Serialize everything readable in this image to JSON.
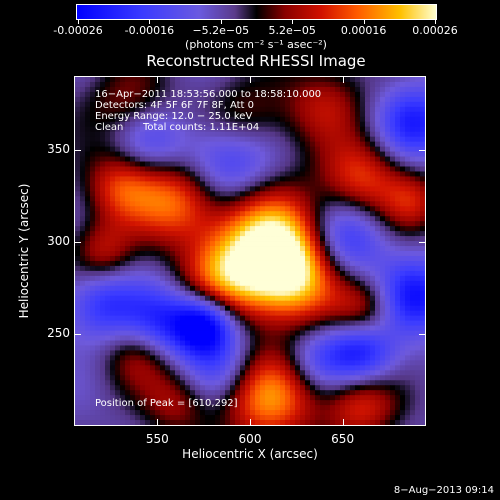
{
  "colorbar": {
    "ticks": [
      "-0.00026",
      "-0.00016",
      "−5.2e−05",
      "5.2e−05",
      "0.00016",
      "0.00026"
    ],
    "unit": "(photons cm⁻² s⁻¹ asec⁻²)"
  },
  "chart_data": {
    "type": "heatmap",
    "title": "Reconstructed RHESSI Image",
    "xlabel": "Heliocentric X (arcsec)",
    "ylabel": "Heliocentric Y (arcsec)",
    "xlim": [
      505,
      695
    ],
    "ylim": [
      200,
      390
    ],
    "xticks": [
      "550",
      "600",
      "650"
    ],
    "yticks": [
      "250",
      "300",
      "350"
    ],
    "zlim": [
      -0.00026,
      0.00026
    ],
    "annotations": {
      "time": "16−Apr−2011 18:53:56.000 to 18:58:10.000",
      "detectors": "Detectors: 4F 5F 6F 7F 8F, Att 0",
      "energy": "Energy Range: 12.0 − 25.0 keV",
      "clean": "Clean",
      "counts": "Total counts: 1.11E+04",
      "peak": "Position of Peak = [610,292]"
    },
    "blobs": [
      {
        "x": 610,
        "y": 300,
        "v": 0.00026,
        "r": 22
      },
      {
        "x": 622,
        "y": 282,
        "v": 0.00024,
        "r": 18
      },
      {
        "x": 585,
        "y": 280,
        "v": 0.00016,
        "r": 16
      },
      {
        "x": 560,
        "y": 322,
        "v": 0.00019,
        "r": 16
      },
      {
        "x": 530,
        "y": 330,
        "v": 0.00016,
        "r": 14
      },
      {
        "x": 520,
        "y": 295,
        "v": 0.00012,
        "r": 12
      },
      {
        "x": 660,
        "y": 335,
        "v": 0.00016,
        "r": 15
      },
      {
        "x": 688,
        "y": 322,
        "v": 0.00012,
        "r": 12
      },
      {
        "x": 598,
        "y": 365,
        "v": 0.00012,
        "r": 16
      },
      {
        "x": 640,
        "y": 375,
        "v": 0.00011,
        "r": 16
      },
      {
        "x": 535,
        "y": 375,
        "v": 0.0001,
        "r": 16
      },
      {
        "x": 662,
        "y": 262,
        "v": 0.00014,
        "r": 13
      },
      {
        "x": 540,
        "y": 240,
        "v": 0.00012,
        "r": 14
      },
      {
        "x": 610,
        "y": 215,
        "v": 0.00022,
        "r": 18
      },
      {
        "x": 660,
        "y": 212,
        "v": 0.00016,
        "r": 14
      },
      {
        "x": 560,
        "y": 212,
        "v": 0.0001,
        "r": 13
      },
      {
        "x": 575,
        "y": 255,
        "v": -0.00026,
        "r": 12
      },
      {
        "x": 550,
        "y": 255,
        "v": -0.00016,
        "r": 14
      },
      {
        "x": 660,
        "y": 240,
        "v": -0.0002,
        "r": 14
      },
      {
        "x": 650,
        "y": 300,
        "v": -0.00016,
        "r": 16
      },
      {
        "x": 590,
        "y": 345,
        "v": -0.00016,
        "r": 18
      },
      {
        "x": 545,
        "y": 355,
        "v": -0.0001,
        "r": 14
      },
      {
        "x": 690,
        "y": 365,
        "v": -0.00016,
        "r": 14
      },
      {
        "x": 520,
        "y": 265,
        "v": -0.00014,
        "r": 14
      },
      {
        "x": 690,
        "y": 270,
        "v": -0.00018,
        "r": 14
      },
      {
        "x": 585,
        "y": 230,
        "v": -0.0001,
        "r": 14
      },
      {
        "x": 635,
        "y": 235,
        "v": -8e-05,
        "r": 12
      }
    ]
  },
  "footer": {
    "date": "8−Aug−2013 09:14"
  }
}
